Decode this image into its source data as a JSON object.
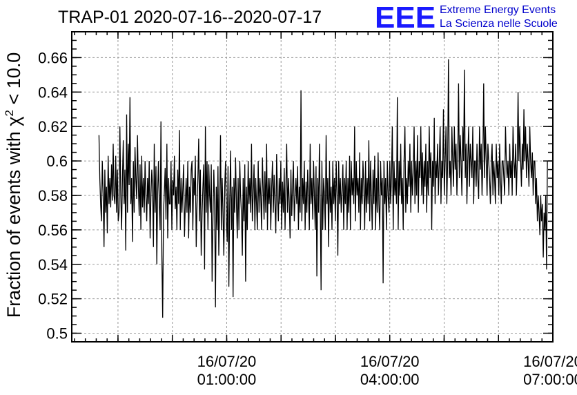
{
  "chart_data": {
    "type": "line",
    "title": "TRAP-01 2020-07-16--2020-07-17",
    "ylabel_prefix": "Fraction of events with ",
    "ylabel_chi": "χ",
    "ylabel_sup": "2",
    "ylabel_suffix": " < 10.0",
    "xlabel": "",
    "ylim": [
      0.495,
      0.675
    ],
    "yticks": [
      0.5,
      0.52,
      0.54,
      0.56,
      0.58,
      0.6,
      0.62,
      0.64,
      0.66
    ],
    "ytick_labels": [
      "0.5",
      "0.52",
      "0.54",
      "0.56",
      "0.58",
      "0.6",
      "0.62",
      "0.64",
      "0.66"
    ],
    "xlim_hours": [
      -1.85,
      7.0
    ],
    "xticks": [
      {
        "hour": 1,
        "line1": "16/07/20",
        "line2": "01:00:00"
      },
      {
        "hour": 4,
        "line1": "16/07/20",
        "line2": "04:00:00"
      },
      {
        "hour": 7,
        "line1": "16/07/20",
        "line2": "07:00:00"
      }
    ],
    "x_start_hours": -1.35,
    "x_end_hours": 6.9,
    "grid": true,
    "legend": "none",
    "line_color": "#000000",
    "series": [
      {
        "values": [
          0.615,
          0.59,
          0.575,
          0.565,
          0.6,
          0.58,
          0.55,
          0.595,
          0.57,
          0.585,
          0.558,
          0.603,
          0.575,
          0.59,
          0.573,
          0.598,
          0.577,
          0.61,
          0.58,
          0.575,
          0.603,
          0.57,
          0.595,
          0.565,
          0.57,
          0.62,
          0.58,
          0.56,
          0.59,
          0.612,
          0.575,
          0.595,
          0.548,
          0.627,
          0.57,
          0.61,
          0.586,
          0.637,
          0.575,
          0.59,
          0.553,
          0.6,
          0.57,
          0.608,
          0.59,
          0.578,
          0.615,
          0.585,
          0.568,
          0.598,
          0.56,
          0.603,
          0.573,
          0.59,
          0.57,
          0.6,
          0.58,
          0.565,
          0.59,
          0.575,
          0.6,
          0.555,
          0.58,
          0.595,
          0.585,
          0.55,
          0.61,
          0.57,
          0.597,
          0.54,
          0.582,
          0.6,
          0.575,
          0.56,
          0.623,
          0.545,
          0.509,
          0.57,
          0.582,
          0.596,
          0.566,
          0.61,
          0.555,
          0.59,
          0.575,
          0.575,
          0.6,
          0.56,
          0.589,
          0.58,
          0.603,
          0.572,
          0.585,
          0.56,
          0.595,
          0.575,
          0.618,
          0.56,
          0.59,
          0.57,
          0.583,
          0.598,
          0.556,
          0.575,
          0.59,
          0.57,
          0.6,
          0.555,
          0.585,
          0.57,
          0.595,
          0.6,
          0.56,
          0.59,
          0.58,
          0.603,
          0.55,
          0.575,
          0.59,
          0.613,
          0.565,
          0.595,
          0.545,
          0.57,
          0.585,
          0.598,
          0.537,
          0.62,
          0.57,
          0.6,
          0.56,
          0.598,
          0.58,
          0.57,
          0.598,
          0.53,
          0.565,
          0.595,
          0.575,
          0.515,
          0.585,
          0.56,
          0.597,
          0.545,
          0.575,
          0.615,
          0.56,
          0.59,
          0.57,
          0.545,
          0.585,
          0.6,
          0.565,
          0.553,
          0.597,
          0.527,
          0.575,
          0.606,
          0.56,
          0.585,
          0.521,
          0.59,
          0.57,
          0.602,
          0.575,
          0.555,
          0.59,
          0.56,
          0.6,
          0.58,
          0.57,
          0.545,
          0.59,
          0.565,
          0.598,
          0.53,
          0.585,
          0.56,
          0.6,
          0.575,
          0.59,
          0.57,
          0.61,
          0.565,
          0.58,
          0.598,
          0.56,
          0.59,
          0.575,
          0.56,
          0.6,
          0.57,
          0.59,
          0.58,
          0.56,
          0.602,
          0.583,
          0.566,
          0.594,
          0.57,
          0.61,
          0.56,
          0.59,
          0.575,
          0.59,
          0.56,
          0.585,
          0.6,
          0.57,
          0.592,
          0.575,
          0.558,
          0.604,
          0.58,
          0.565,
          0.59,
          0.575,
          0.6,
          0.56,
          0.588,
          0.57,
          0.596,
          0.56,
          0.585,
          0.61,
          0.57,
          0.59,
          0.576,
          0.555,
          0.595,
          0.568,
          0.585,
          0.6,
          0.565,
          0.58,
          0.59,
          0.575,
          0.597,
          0.56,
          0.585,
          0.57,
          0.641,
          0.565,
          0.59,
          0.575,
          0.6,
          0.56,
          0.588,
          0.57,
          0.595,
          0.58,
          0.56,
          0.61,
          0.575,
          0.59,
          0.566,
          0.6,
          0.58,
          0.56,
          0.597,
          0.533,
          0.59,
          0.57,
          0.61,
          0.575,
          0.525,
          0.6,
          0.56,
          0.59,
          0.58,
          0.56,
          0.615,
          0.575,
          0.59,
          0.55,
          0.6,
          0.57,
          0.585,
          0.56,
          0.6,
          0.575,
          0.59,
          0.565,
          0.6,
          0.58,
          0.545,
          0.6,
          0.575,
          0.59,
          0.57,
          0.583,
          0.598,
          0.56,
          0.59,
          0.575,
          0.6,
          0.56,
          0.59,
          0.57,
          0.603,
          0.56,
          0.6,
          0.58,
          0.59,
          0.575,
          0.62,
          0.565,
          0.6,
          0.58,
          0.59,
          0.57,
          0.605,
          0.56,
          0.59,
          0.575,
          0.6,
          0.585,
          0.56,
          0.6,
          0.57,
          0.59,
          0.575,
          0.612,
          0.565,
          0.6,
          0.58,
          0.56,
          0.595,
          0.575,
          0.603,
          0.56,
          0.59,
          0.57,
          0.605,
          0.575,
          0.56,
          0.6,
          0.58,
          0.59,
          0.529,
          0.6,
          0.575,
          0.59,
          0.56,
          0.6,
          0.58,
          0.57,
          0.6,
          0.575,
          0.59,
          0.62,
          0.56,
          0.6,
          0.58,
          0.59,
          0.575,
          0.637,
          0.56,
          0.6,
          0.58,
          0.61,
          0.575,
          0.59,
          0.56,
          0.6,
          0.62,
          0.57,
          0.59,
          0.575,
          0.6,
          0.585,
          0.61,
          0.57,
          0.6,
          0.58,
          0.595,
          0.62,
          0.575,
          0.6,
          0.58,
          0.615,
          0.57,
          0.6,
          0.59,
          0.62,
          0.58,
          0.605,
          0.575,
          0.6,
          0.585,
          0.61,
          0.57,
          0.6,
          0.58,
          0.62,
          0.59,
          0.605,
          0.56,
          0.6,
          0.585,
          0.625,
          0.575,
          0.6,
          0.59,
          0.61,
          0.58,
          0.6,
          0.62,
          0.575,
          0.6,
          0.59,
          0.63,
          0.58,
          0.6,
          0.62,
          0.575,
          0.6,
          0.659,
          0.59,
          0.6,
          0.58,
          0.62,
          0.6,
          0.585,
          0.62,
          0.595,
          0.61,
          0.58,
          0.6,
          0.645,
          0.59,
          0.615,
          0.6,
          0.58,
          0.62,
          0.6,
          0.653,
          0.59,
          0.61,
          0.575,
          0.6,
          0.62,
          0.585,
          0.61,
          0.6,
          0.59,
          0.62,
          0.575,
          0.6,
          0.6,
          0.585,
          0.61,
          0.59,
          0.578,
          0.62,
          0.595,
          0.61,
          0.58,
          0.6,
          0.645,
          0.59,
          0.62,
          0.6,
          0.58,
          0.61,
          0.6,
          0.59,
          0.575,
          0.6,
          0.61,
          0.58,
          0.6,
          0.59,
          0.575,
          0.61,
          0.59,
          0.6,
          0.58,
          0.61,
          0.59,
          0.575,
          0.6,
          0.6,
          0.59,
          0.58,
          0.62,
          0.6,
          0.59,
          0.6,
          0.58,
          0.61,
          0.59,
          0.6,
          0.58,
          0.62,
          0.6,
          0.59,
          0.61,
          0.58,
          0.6,
          0.64,
          0.6,
          0.62,
          0.6,
          0.585,
          0.61,
          0.595,
          0.63,
          0.6,
          0.62,
          0.59,
          0.61,
          0.6,
          0.585,
          0.62,
          0.6,
          0.59,
          0.605,
          0.58,
          0.6,
          0.6,
          0.575,
          0.59,
          0.565,
          0.58,
          0.57,
          0.557,
          0.58,
          0.565,
          0.575,
          0.544,
          0.57,
          0.56,
          0.58,
          0.537,
          0.6
        ]
      }
    ]
  },
  "logo": {
    "letters": "EEE",
    "line1": "Extreme Energy Events",
    "line2": "La Scienza nelle Scuole",
    "color": "#0000cc"
  }
}
